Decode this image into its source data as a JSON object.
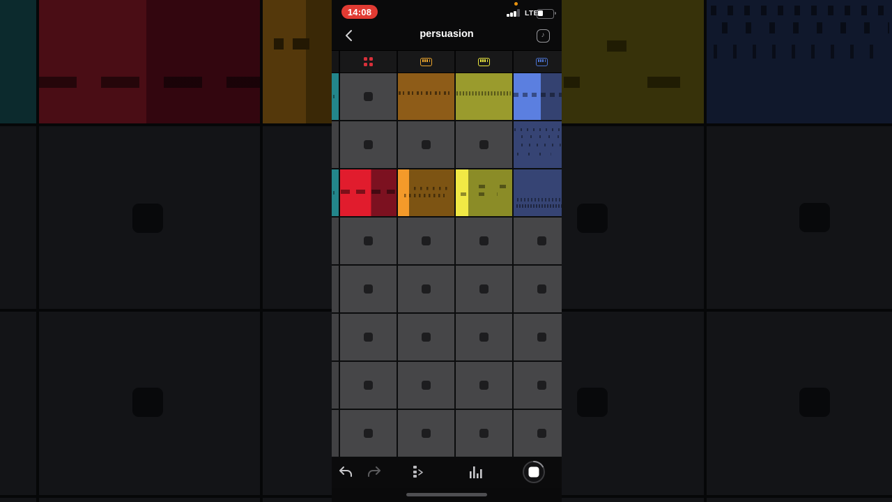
{
  "status_bar": {
    "time": "14:08",
    "time_pill_color": "#e13b33",
    "network": "LTE",
    "battery_level": 0.33,
    "recording_indicator_color": "#e8920e",
    "signal_bars_filled": 3,
    "signal_bars_total": 4
  },
  "nav": {
    "title": "persuasion",
    "back_icon": "chevron-left-icon",
    "metronome_icon": "metronome-icon"
  },
  "tracks": [
    {
      "type": "drums",
      "icon": "drum-pads-icon",
      "color": "#d8303a"
    },
    {
      "type": "keys",
      "icon": "keys-icon",
      "color": "#eda62d"
    },
    {
      "type": "keys",
      "icon": "keys-icon",
      "color": "#ece83e"
    },
    {
      "type": "keys",
      "icon": "keys-icon",
      "color": "#4b72d0"
    }
  ],
  "session": {
    "row_count": 8,
    "column_count": 4,
    "scene_colors": [
      "#23868b",
      "#414143",
      "#23868b",
      "#414143",
      "#414143",
      "#414143",
      "#414143",
      "#414143"
    ],
    "empty_cell_color": "#464648",
    "clips": [
      {
        "row": 0,
        "col": 1,
        "state": "stopped",
        "base": "#8e5c18",
        "pattern": "pat-line-mid"
      },
      {
        "row": 0,
        "col": 2,
        "state": "stopped",
        "base": "#9a9b2d",
        "pattern": "pat-dense-mid"
      },
      {
        "row": 0,
        "col": 3,
        "state": "playing",
        "progress": 48,
        "played": "#5b7fe0",
        "base": "#344271",
        "pattern": "pat-dash-mid"
      },
      {
        "row": 1,
        "col": 3,
        "state": "stopped",
        "base": "#364474",
        "pattern": "pat-scatter"
      },
      {
        "row": 2,
        "col": 0,
        "state": "playing",
        "progress": 55,
        "played": "#e11c2d",
        "base": "#7c1120",
        "pattern": "pat-dash-long"
      },
      {
        "row": 2,
        "col": 1,
        "state": "playing",
        "progress": 20,
        "played": "#f49a2a",
        "base": "#7d5413",
        "pattern": "pat-two-rows"
      },
      {
        "row": 2,
        "col": 2,
        "state": "playing",
        "progress": 22,
        "played": "#f1e945",
        "base": "#8b8c27",
        "pattern": "pat-steps"
      },
      {
        "row": 2,
        "col": 3,
        "state": "stopped",
        "base": "#364474",
        "pattern": "pat-bottom-dense"
      }
    ]
  },
  "toolbar": {
    "icons": [
      "undo-icon",
      "redo-icon",
      "track-detail-icon",
      "mixer-levels-icon",
      "stop-record-button"
    ],
    "redo_enabled": false
  },
  "colors": {
    "scene_teal": "#23868b",
    "grid_line": "#0b0c0d",
    "header_bg": "#181819",
    "phone_bg": "#0a0a0b"
  }
}
